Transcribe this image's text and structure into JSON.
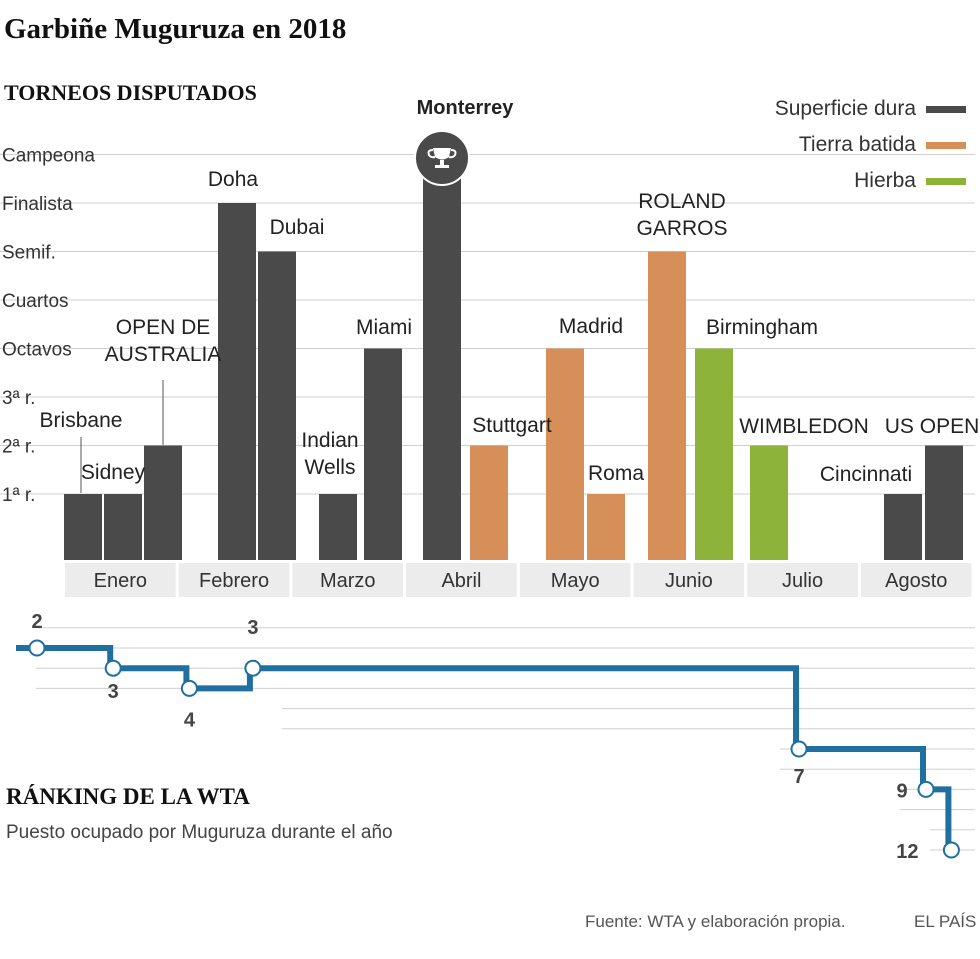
{
  "title": "Garbiñe Muguruza en 2018",
  "source": "Fuente: WTA y elaboración propia.",
  "brand": "EL PAÍS",
  "colors": {
    "hard": "#4a4a4a",
    "clay": "#d68f59",
    "grass": "#8db33a",
    "ranking": "#1f6f9f",
    "month_bg": "#ececec",
    "grid": "#cfcfcf"
  },
  "chart_data": [
    {
      "type": "bar",
      "title": "TORNEOS DISPUTADOS",
      "levels": [
        "1ª r.",
        "2ª r.",
        "3ª r.",
        "Octavos",
        "Cuartos",
        "Semif.",
        "Finalista",
        "Campeona"
      ],
      "months": [
        "Enero",
        "Febrero",
        "Marzo",
        "Abril",
        "Mayo",
        "Junio",
        "Julio",
        "Agosto"
      ],
      "legend": [
        {
          "label": "Superficie dura",
          "surface": "hard"
        },
        {
          "label": "Tierra batida",
          "surface": "clay"
        },
        {
          "label": "Hierba",
          "surface": "grass"
        }
      ],
      "tournaments": [
        {
          "name": "Sidney",
          "month": "Enero",
          "surface": "hard",
          "result": 1
        },
        {
          "name": "Brisbane",
          "month": "Enero",
          "surface": "hard",
          "result": 1
        },
        {
          "name": "OPEN DE AUSTRALIA",
          "month": "Enero",
          "surface": "hard",
          "result": 2
        },
        {
          "name": "Doha",
          "month": "Febrero",
          "surface": "hard",
          "result": 7
        },
        {
          "name": "Dubai",
          "month": "Febrero",
          "surface": "hard",
          "result": 6
        },
        {
          "name": "Indian Wells",
          "month": "Marzo",
          "surface": "hard",
          "result": 1
        },
        {
          "name": "Miami",
          "month": "Marzo",
          "surface": "hard",
          "result": 4
        },
        {
          "name": "Monterrey",
          "month": "Abril",
          "surface": "hard",
          "result": 8,
          "champion": true
        },
        {
          "name": "Stuttgart",
          "month": "Abril",
          "surface": "clay",
          "result": 2
        },
        {
          "name": "Madrid",
          "month": "Mayo",
          "surface": "clay",
          "result": 4
        },
        {
          "name": "Roma",
          "month": "Mayo",
          "surface": "clay",
          "result": 1
        },
        {
          "name": "ROLAND GARROS",
          "month": "Junio",
          "surface": "clay",
          "result": 6
        },
        {
          "name": "Birmingham",
          "month": "Junio",
          "surface": "grass",
          "result": 4
        },
        {
          "name": "WIMBLEDON",
          "month": "Julio",
          "surface": "grass",
          "result": 2
        },
        {
          "name": "Cincinnati",
          "month": "Agosto",
          "surface": "hard",
          "result": 1
        },
        {
          "name": "US OPEN",
          "month": "Agosto",
          "surface": "hard",
          "result": 2
        }
      ]
    },
    {
      "type": "line",
      "title": "RÁNKING DE LA WTA",
      "subtitle": "Puesto ocupado por Muguruza durante el año",
      "ylim": [
        1,
        13
      ],
      "points": [
        {
          "week": 1,
          "rank": 2,
          "label": "2"
        },
        {
          "week": 4,
          "rank": 3,
          "label": "3"
        },
        {
          "week": 7,
          "rank": 4,
          "label": "4"
        },
        {
          "week": 9.5,
          "rank": 3,
          "label": "3"
        },
        {
          "week": 31,
          "rank": 7,
          "label": "7"
        },
        {
          "week": 36,
          "rank": 9,
          "label": "9"
        },
        {
          "week": 37,
          "rank": 12,
          "label": "12"
        }
      ]
    }
  ]
}
